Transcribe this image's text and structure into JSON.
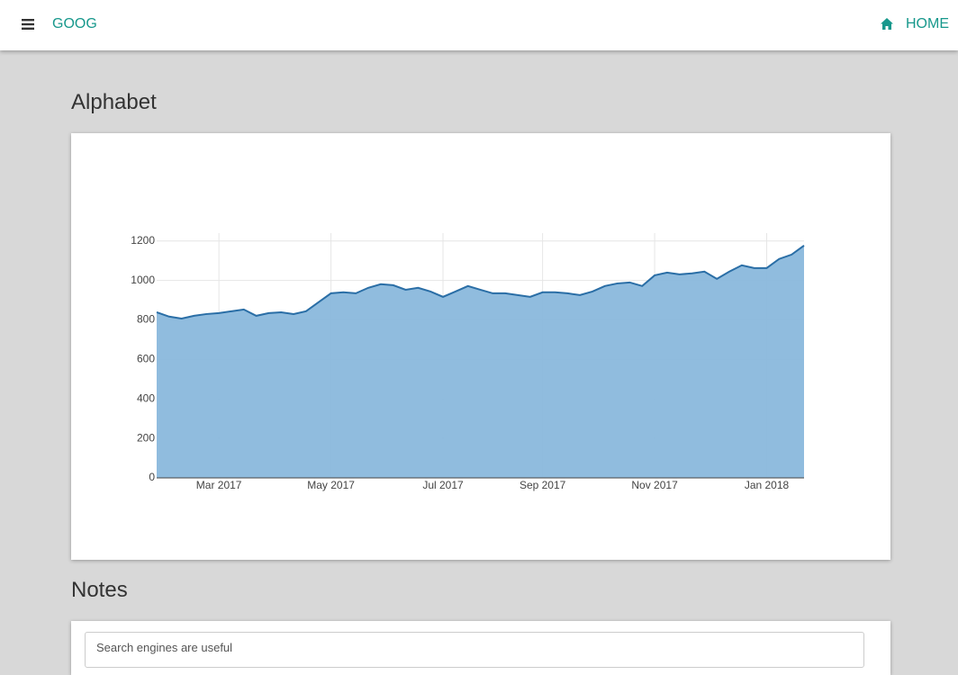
{
  "header": {
    "brand": "GOOG",
    "nav": "HOME"
  },
  "title": "Alphabet",
  "chart_data": {
    "type": "area",
    "categories": [
      null,
      null,
      null,
      null,
      null,
      "Mar 2017",
      null,
      null,
      null,
      null,
      null,
      null,
      null,
      null,
      "May 2017",
      null,
      null,
      null,
      null,
      null,
      null,
      null,
      null,
      "Jul 2017",
      null,
      null,
      null,
      null,
      null,
      null,
      null,
      "Sep 2017",
      null,
      null,
      null,
      null,
      null,
      null,
      null,
      null,
      "Nov 2017",
      null,
      null,
      null,
      null,
      null,
      null,
      null,
      null,
      "Jan 2018",
      null,
      null,
      null
    ],
    "values": [
      839,
      817,
      807,
      821,
      830,
      835,
      844,
      853,
      821,
      835,
      839,
      830,
      844,
      890,
      935,
      940,
      935,
      963,
      981,
      976,
      953,
      963,
      944,
      917,
      944,
      972,
      953,
      935,
      935,
      926,
      917,
      940,
      940,
      935,
      926,
      944,
      972,
      985,
      990,
      972,
      1026,
      1040,
      1031,
      1036,
      1045,
      1008,
      1045,
      1077,
      1063,
      1063,
      1109,
      1131,
      1177
    ],
    "color": "#8ab8dc",
    "line_color": "#2a6ea6",
    "ylim": [
      0,
      1240
    ],
    "yticks": [
      0,
      200,
      400,
      600,
      800,
      1000,
      1200
    ],
    "grid": true
  },
  "notes": {
    "title": "Notes",
    "input": "Search engines are useful"
  }
}
